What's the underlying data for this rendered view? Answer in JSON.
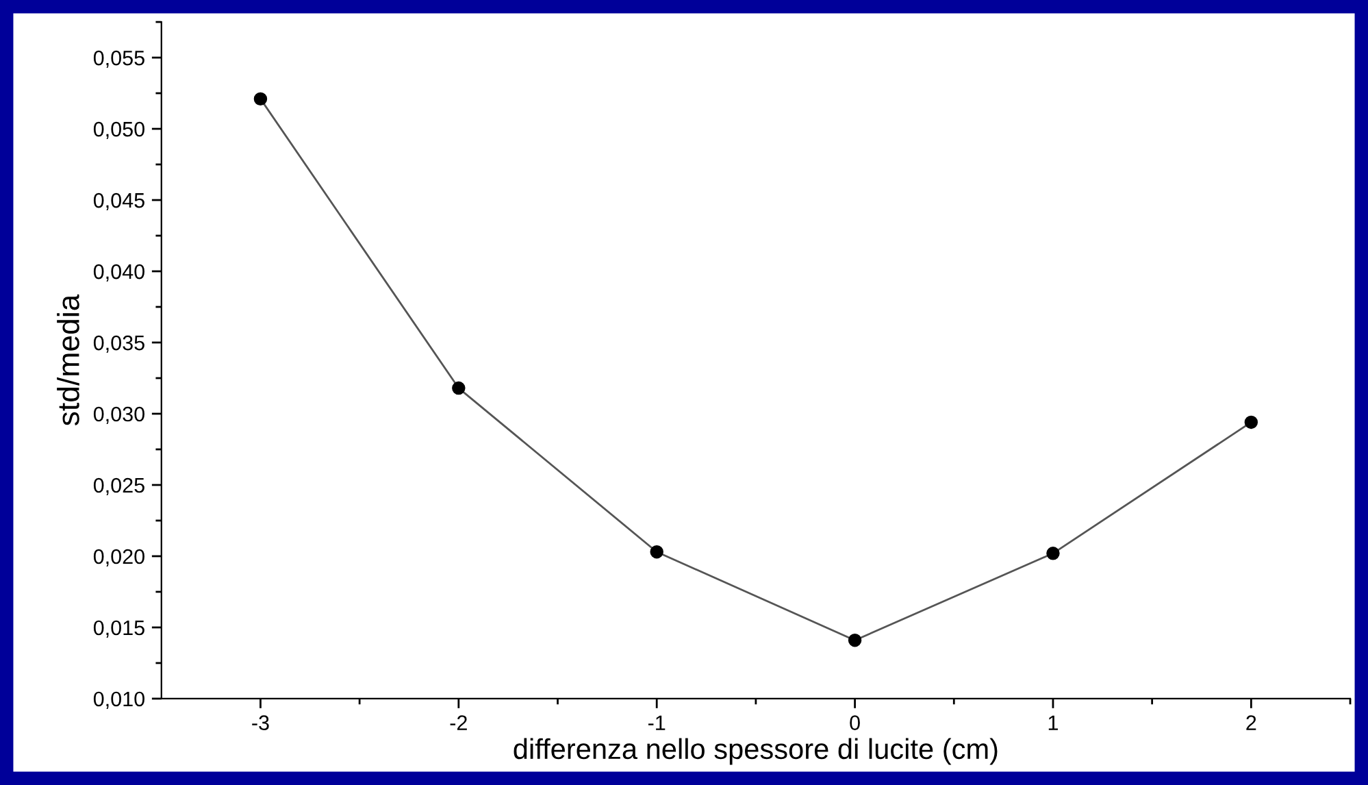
{
  "chart_data": {
    "type": "line",
    "xlabel": "differenza nello spessore di lucite (cm)",
    "ylabel": "std/media",
    "x": [
      -3,
      -2,
      -1,
      0,
      1,
      2
    ],
    "series": [
      {
        "color": "#000000",
        "values": [
          0.0521,
          0.0318,
          0.0203,
          0.0141,
          0.0202,
          0.0294
        ]
      }
    ],
    "marker": "circle",
    "line_style": "solid",
    "grid": false,
    "xlim": [
      -3.5,
      2.5
    ],
    "xticks": [
      -3,
      {
        "value": -2.5,
        "label": null
      },
      -2,
      {
        "value": -1.5,
        "label": null
      },
      -1,
      {
        "value": -0.5,
        "label": null
      },
      0,
      {
        "value": 0.5,
        "label": null
      },
      1,
      {
        "value": 1.5,
        "label": null
      },
      2,
      {
        "value": 2.5,
        "label": null
      }
    ],
    "ylim": [
      0.01,
      0.0575
    ],
    "yticks": [
      {
        "value": 0.01,
        "label": "0,010"
      },
      {
        "value": 0.0125,
        "label": null
      },
      {
        "value": 0.015,
        "label": "0,015"
      },
      {
        "value": 0.0175,
        "label": null
      },
      {
        "value": 0.02,
        "label": "0,020"
      },
      {
        "value": 0.0225,
        "label": null
      },
      {
        "value": 0.025,
        "label": "0,025"
      },
      {
        "value": 0.0275,
        "label": null
      },
      {
        "value": 0.03,
        "label": "0,030"
      },
      {
        "value": 0.0325,
        "label": null
      },
      {
        "value": 0.035,
        "label": "0,035"
      },
      {
        "value": 0.0375,
        "label": null
      },
      {
        "value": 0.04,
        "label": "0,040"
      },
      {
        "value": 0.0425,
        "label": null
      },
      {
        "value": 0.045,
        "label": "0,045"
      },
      {
        "value": 0.0475,
        "label": null
      },
      {
        "value": 0.05,
        "label": "0,050"
      },
      {
        "value": 0.0525,
        "label": null
      },
      {
        "value": 0.055,
        "label": "0,055"
      },
      {
        "value": 0.0575,
        "label": null
      }
    ]
  }
}
